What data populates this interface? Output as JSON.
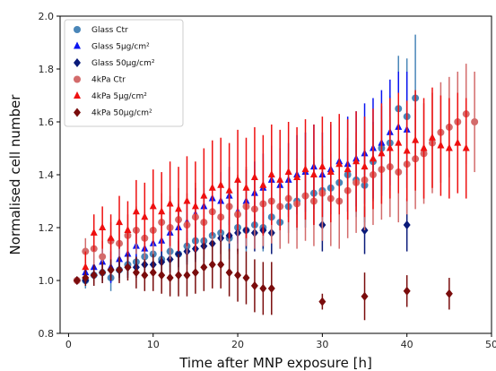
{
  "chart_data": {
    "type": "scatter",
    "title": "",
    "xlabel": "Time after MNP exposure [h]",
    "ylabel": "Normalised cell number",
    "xlim": [
      -1,
      50
    ],
    "ylim": [
      0.8,
      2.0
    ],
    "xticks": [
      0,
      10,
      20,
      30,
      40,
      50
    ],
    "yticks": [
      0.8,
      1.0,
      1.2,
      1.4,
      1.6,
      1.8,
      2.0
    ],
    "xtick_labels": [
      "0",
      "10",
      "20",
      "30",
      "40",
      "50"
    ],
    "ytick_labels": [
      "0.8",
      "1.0",
      "1.2",
      "1.4",
      "1.6",
      "1.8",
      "2.0"
    ],
    "grid": false,
    "legend_position": "top-left",
    "series": [
      {
        "name": "Glass Ctr",
        "marker": "circle",
        "color": "#4a86b8",
        "points": [
          [
            1,
            1.0,
            0.0
          ],
          [
            2,
            1.0,
            0.03
          ],
          [
            3,
            1.02,
            0.04
          ],
          [
            4,
            1.03,
            0.04
          ],
          [
            5,
            1.01,
            0.05
          ],
          [
            6,
            1.04,
            0.04
          ],
          [
            7,
            1.06,
            0.04
          ],
          [
            8,
            1.07,
            0.05
          ],
          [
            9,
            1.09,
            0.05
          ],
          [
            10,
            1.1,
            0.05
          ],
          [
            11,
            1.08,
            0.06
          ],
          [
            12,
            1.11,
            0.06
          ],
          [
            13,
            1.1,
            0.06
          ],
          [
            14,
            1.13,
            0.06
          ],
          [
            15,
            1.15,
            0.07
          ],
          [
            16,
            1.15,
            0.07
          ],
          [
            17,
            1.17,
            0.07
          ],
          [
            18,
            1.18,
            0.08
          ],
          [
            19,
            1.16,
            0.08
          ],
          [
            20,
            1.2,
            0.08
          ],
          [
            21,
            1.19,
            0.08
          ],
          [
            22,
            1.21,
            0.09
          ],
          [
            23,
            1.2,
            0.09
          ],
          [
            24,
            1.24,
            0.1
          ],
          [
            25,
            1.22,
            0.1
          ],
          [
            26,
            1.28,
            0.1
          ],
          [
            27,
            1.3,
            0.11
          ],
          [
            28,
            1.32,
            0.12
          ],
          [
            29,
            1.33,
            0.12
          ],
          [
            30,
            1.34,
            0.12
          ],
          [
            31,
            1.35,
            0.13
          ],
          [
            32,
            1.37,
            0.13
          ],
          [
            33,
            1.4,
            0.14
          ],
          [
            34,
            1.38,
            0.14
          ],
          [
            35,
            1.36,
            0.14
          ],
          [
            36,
            1.45,
            0.15
          ],
          [
            37,
            1.5,
            0.16
          ],
          [
            38,
            1.52,
            0.18
          ],
          [
            39,
            1.65,
            0.2
          ],
          [
            40,
            1.62,
            0.22
          ],
          [
            41,
            1.69,
            0.24
          ]
        ]
      },
      {
        "name": "Glass 5μg/cm²",
        "marker": "triangle",
        "color": "#0a14f0",
        "points": [
          [
            2,
            1.03,
            0.04
          ],
          [
            3,
            1.05,
            0.05
          ],
          [
            4,
            1.07,
            0.05
          ],
          [
            5,
            1.05,
            0.06
          ],
          [
            6,
            1.08,
            0.06
          ],
          [
            7,
            1.1,
            0.06
          ],
          [
            8,
            1.13,
            0.07
          ],
          [
            9,
            1.12,
            0.07
          ],
          [
            10,
            1.14,
            0.07
          ],
          [
            11,
            1.15,
            0.08
          ],
          [
            12,
            1.18,
            0.08
          ],
          [
            13,
            1.2,
            0.09
          ],
          [
            14,
            1.22,
            0.09
          ],
          [
            15,
            1.25,
            0.1
          ],
          [
            16,
            1.28,
            0.1
          ],
          [
            17,
            1.31,
            0.11
          ],
          [
            18,
            1.3,
            0.11
          ],
          [
            19,
            1.32,
            0.11
          ],
          [
            20,
            1.26,
            0.12
          ],
          [
            21,
            1.3,
            0.12
          ],
          [
            22,
            1.33,
            0.12
          ],
          [
            23,
            1.35,
            0.13
          ],
          [
            24,
            1.38,
            0.13
          ],
          [
            25,
            1.36,
            0.14
          ],
          [
            26,
            1.38,
            0.14
          ],
          [
            27,
            1.4,
            0.15
          ],
          [
            28,
            1.41,
            0.15
          ],
          [
            29,
            1.43,
            0.16
          ],
          [
            30,
            1.4,
            0.16
          ],
          [
            31,
            1.42,
            0.17
          ],
          [
            32,
            1.45,
            0.17
          ],
          [
            33,
            1.44,
            0.18
          ],
          [
            34,
            1.46,
            0.18
          ],
          [
            35,
            1.48,
            0.19
          ],
          [
            36,
            1.5,
            0.19
          ],
          [
            37,
            1.52,
            0.2
          ],
          [
            38,
            1.56,
            0.2
          ],
          [
            39,
            1.58,
            0.21
          ],
          [
            40,
            1.57,
            0.22
          ]
        ]
      },
      {
        "name": "Glass 50μg/cm²",
        "marker": "diamond",
        "color": "#0a1a7a",
        "points": [
          [
            1,
            1.0,
            0.0
          ],
          [
            2,
            1.0,
            0.02
          ],
          [
            3,
            1.02,
            0.03
          ],
          [
            4,
            1.03,
            0.03
          ],
          [
            5,
            1.04,
            0.03
          ],
          [
            6,
            1.04,
            0.03
          ],
          [
            7,
            1.05,
            0.04
          ],
          [
            8,
            1.05,
            0.04
          ],
          [
            9,
            1.06,
            0.04
          ],
          [
            10,
            1.06,
            0.04
          ],
          [
            11,
            1.07,
            0.04
          ],
          [
            12,
            1.08,
            0.05
          ],
          [
            13,
            1.1,
            0.05
          ],
          [
            14,
            1.11,
            0.05
          ],
          [
            15,
            1.12,
            0.05
          ],
          [
            16,
            1.13,
            0.06
          ],
          [
            17,
            1.14,
            0.06
          ],
          [
            18,
            1.16,
            0.06
          ],
          [
            19,
            1.17,
            0.06
          ],
          [
            20,
            1.18,
            0.07
          ],
          [
            21,
            1.19,
            0.07
          ],
          [
            22,
            1.18,
            0.07
          ],
          [
            23,
            1.19,
            0.07
          ],
          [
            24,
            1.18,
            0.08
          ],
          [
            30,
            1.21,
            0.1
          ],
          [
            35,
            1.19,
            0.09
          ],
          [
            40,
            1.21,
            0.1
          ]
        ]
      },
      {
        "name": "4kPa Ctr",
        "marker": "circle",
        "color": "#d36b6b",
        "points": [
          [
            1,
            1.0,
            0.0
          ],
          [
            2,
            1.11,
            0.05
          ],
          [
            3,
            1.12,
            0.06
          ],
          [
            4,
            1.09,
            0.06
          ],
          [
            5,
            1.15,
            0.07
          ],
          [
            6,
            1.14,
            0.07
          ],
          [
            7,
            1.17,
            0.08
          ],
          [
            8,
            1.19,
            0.09
          ],
          [
            9,
            1.16,
            0.1
          ],
          [
            10,
            1.19,
            0.11
          ],
          [
            11,
            1.22,
            0.11
          ],
          [
            12,
            1.2,
            0.12
          ],
          [
            13,
            1.23,
            0.12
          ],
          [
            14,
            1.21,
            0.12
          ],
          [
            15,
            1.24,
            0.13
          ],
          [
            16,
            1.22,
            0.13
          ],
          [
            17,
            1.26,
            0.14
          ],
          [
            18,
            1.24,
            0.14
          ],
          [
            19,
            1.28,
            0.14
          ],
          [
            20,
            1.25,
            0.15
          ],
          [
            21,
            1.28,
            0.15
          ],
          [
            22,
            1.27,
            0.15
          ],
          [
            23,
            1.29,
            0.16
          ],
          [
            24,
            1.3,
            0.16
          ],
          [
            25,
            1.28,
            0.16
          ],
          [
            26,
            1.31,
            0.17
          ],
          [
            27,
            1.29,
            0.17
          ],
          [
            28,
            1.32,
            0.17
          ],
          [
            29,
            1.3,
            0.17
          ],
          [
            30,
            1.33,
            0.18
          ],
          [
            31,
            1.31,
            0.18
          ],
          [
            32,
            1.3,
            0.18
          ],
          [
            33,
            1.34,
            0.18
          ],
          [
            34,
            1.37,
            0.19
          ],
          [
            35,
            1.38,
            0.19
          ],
          [
            36,
            1.4,
            0.19
          ],
          [
            37,
            1.42,
            0.19
          ],
          [
            38,
            1.43,
            0.19
          ],
          [
            39,
            1.41,
            0.19
          ],
          [
            40,
            1.44,
            0.19
          ],
          [
            41,
            1.46,
            0.19
          ],
          [
            42,
            1.48,
            0.19
          ],
          [
            43,
            1.52,
            0.19
          ],
          [
            44,
            1.56,
            0.19
          ],
          [
            45,
            1.58,
            0.19
          ],
          [
            46,
            1.6,
            0.19
          ],
          [
            47,
            1.63,
            0.19
          ],
          [
            48,
            1.6,
            0.19
          ]
        ]
      },
      {
        "name": "4kPa 5μg/cm²",
        "marker": "triangle",
        "color": "#ee1010",
        "points": [
          [
            2,
            1.05,
            0.06
          ],
          [
            3,
            1.18,
            0.07
          ],
          [
            4,
            1.2,
            0.08
          ],
          [
            5,
            1.16,
            0.09
          ],
          [
            6,
            1.22,
            0.1
          ],
          [
            7,
            1.19,
            0.11
          ],
          [
            8,
            1.26,
            0.12
          ],
          [
            9,
            1.24,
            0.13
          ],
          [
            10,
            1.28,
            0.14
          ],
          [
            11,
            1.26,
            0.15
          ],
          [
            12,
            1.29,
            0.16
          ],
          [
            13,
            1.27,
            0.16
          ],
          [
            14,
            1.3,
            0.17
          ],
          [
            15,
            1.28,
            0.17
          ],
          [
            16,
            1.32,
            0.18
          ],
          [
            17,
            1.35,
            0.18
          ],
          [
            18,
            1.36,
            0.18
          ],
          [
            19,
            1.34,
            0.18
          ],
          [
            20,
            1.38,
            0.19
          ],
          [
            21,
            1.35,
            0.19
          ],
          [
            22,
            1.39,
            0.19
          ],
          [
            23,
            1.36,
            0.19
          ],
          [
            24,
            1.4,
            0.19
          ],
          [
            25,
            1.38,
            0.19
          ],
          [
            26,
            1.41,
            0.19
          ],
          [
            27,
            1.39,
            0.19
          ],
          [
            28,
            1.42,
            0.19
          ],
          [
            29,
            1.4,
            0.19
          ],
          [
            30,
            1.43,
            0.19
          ],
          [
            31,
            1.41,
            0.19
          ],
          [
            32,
            1.44,
            0.19
          ],
          [
            33,
            1.42,
            0.19
          ],
          [
            34,
            1.45,
            0.19
          ],
          [
            35,
            1.43,
            0.19
          ],
          [
            36,
            1.46,
            0.19
          ],
          [
            37,
            1.48,
            0.19
          ],
          [
            38,
            1.5,
            0.19
          ],
          [
            39,
            1.52,
            0.19
          ],
          [
            40,
            1.49,
            0.19
          ],
          [
            41,
            1.53,
            0.19
          ],
          [
            42,
            1.5,
            0.19
          ],
          [
            43,
            1.54,
            0.19
          ],
          [
            44,
            1.51,
            0.19
          ],
          [
            45,
            1.5,
            0.19
          ],
          [
            46,
            1.52,
            0.19
          ],
          [
            47,
            1.5,
            0.19
          ]
        ]
      },
      {
        "name": "4kPa 50μg/cm²",
        "marker": "diamond",
        "color": "#7a0c0c",
        "points": [
          [
            1,
            1.0,
            0.0
          ],
          [
            2,
            1.01,
            0.03
          ],
          [
            3,
            1.02,
            0.04
          ],
          [
            4,
            1.03,
            0.04
          ],
          [
            5,
            1.04,
            0.04
          ],
          [
            6,
            1.04,
            0.05
          ],
          [
            7,
            1.05,
            0.05
          ],
          [
            8,
            1.03,
            0.06
          ],
          [
            9,
            1.02,
            0.06
          ],
          [
            10,
            1.03,
            0.07
          ],
          [
            11,
            1.02,
            0.07
          ],
          [
            12,
            1.01,
            0.07
          ],
          [
            13,
            1.02,
            0.08
          ],
          [
            14,
            1.02,
            0.08
          ],
          [
            15,
            1.03,
            0.08
          ],
          [
            16,
            1.05,
            0.09
          ],
          [
            17,
            1.06,
            0.09
          ],
          [
            18,
            1.06,
            0.09
          ],
          [
            19,
            1.03,
            0.09
          ],
          [
            20,
            1.02,
            0.1
          ],
          [
            21,
            1.01,
            0.1
          ],
          [
            22,
            0.98,
            0.1
          ],
          [
            23,
            0.97,
            0.1
          ],
          [
            24,
            0.97,
            0.1
          ],
          [
            30,
            0.92,
            0.03
          ],
          [
            35,
            0.94,
            0.09
          ],
          [
            40,
            0.96,
            0.06
          ],
          [
            45,
            0.95,
            0.06
          ]
        ]
      }
    ]
  }
}
